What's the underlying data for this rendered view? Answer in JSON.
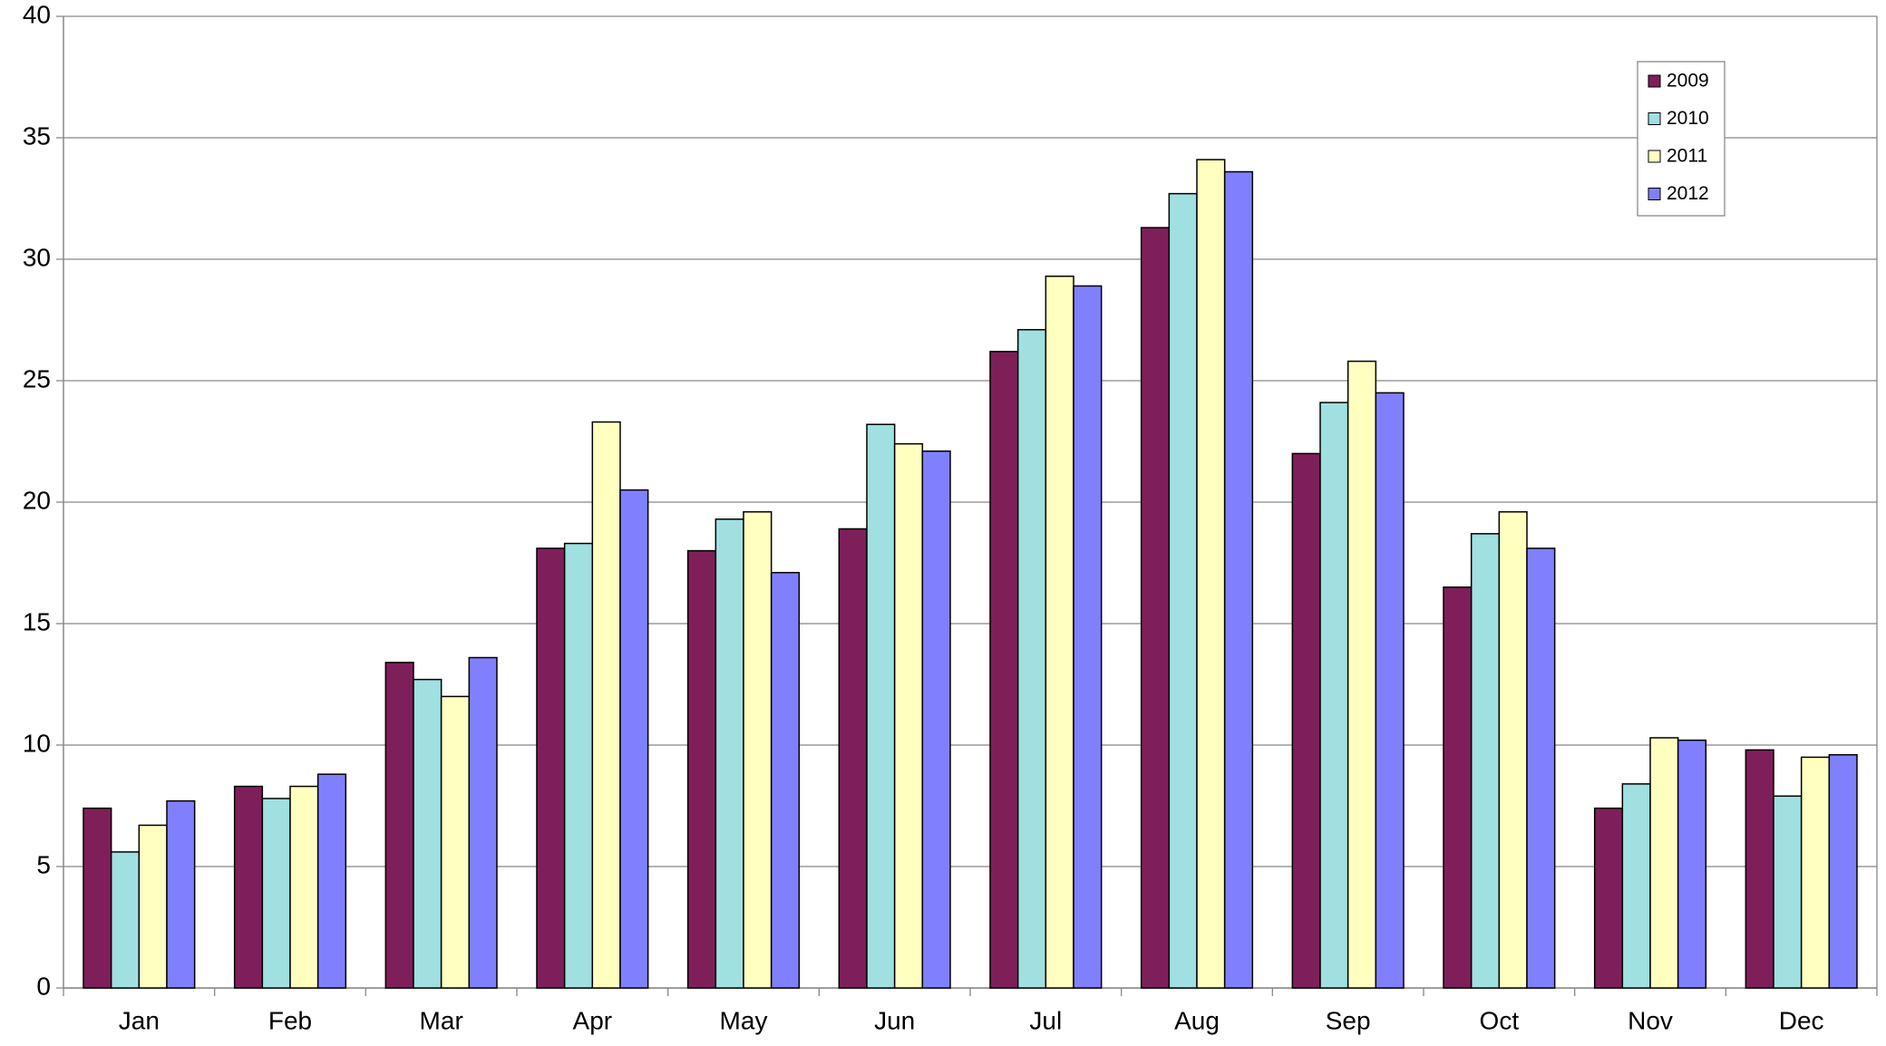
{
  "chart_data": {
    "type": "bar",
    "categories": [
      "Jan",
      "Feb",
      "Mar",
      "Apr",
      "May",
      "Jun",
      "Jul",
      "Aug",
      "Sep",
      "Oct",
      "Nov",
      "Dec"
    ],
    "series": [
      {
        "name": "2009",
        "color": "#7f1f5a",
        "values": [
          7.4,
          8.3,
          13.4,
          18.1,
          18.0,
          18.9,
          26.2,
          31.3,
          22.0,
          16.5,
          7.4,
          9.8
        ]
      },
      {
        "name": "2010",
        "color": "#a0e0e0",
        "values": [
          5.6,
          7.8,
          12.7,
          18.3,
          19.3,
          23.2,
          27.1,
          32.7,
          24.1,
          18.7,
          8.4,
          7.9
        ]
      },
      {
        "name": "2011",
        "color": "#ffffc0",
        "values": [
          6.7,
          8.3,
          12.0,
          23.3,
          19.6,
          22.4,
          29.3,
          34.1,
          25.8,
          19.6,
          10.3,
          9.5
        ]
      },
      {
        "name": "2012",
        "color": "#8080ff",
        "values": [
          7.7,
          8.8,
          13.6,
          20.5,
          17.1,
          22.1,
          28.9,
          33.6,
          24.5,
          18.1,
          10.2,
          9.6
        ]
      }
    ],
    "ylim": [
      0,
      40
    ],
    "yticks": [
      0,
      5,
      10,
      15,
      20,
      25,
      30,
      35,
      40
    ],
    "grid": true,
    "legend": "top-right"
  }
}
